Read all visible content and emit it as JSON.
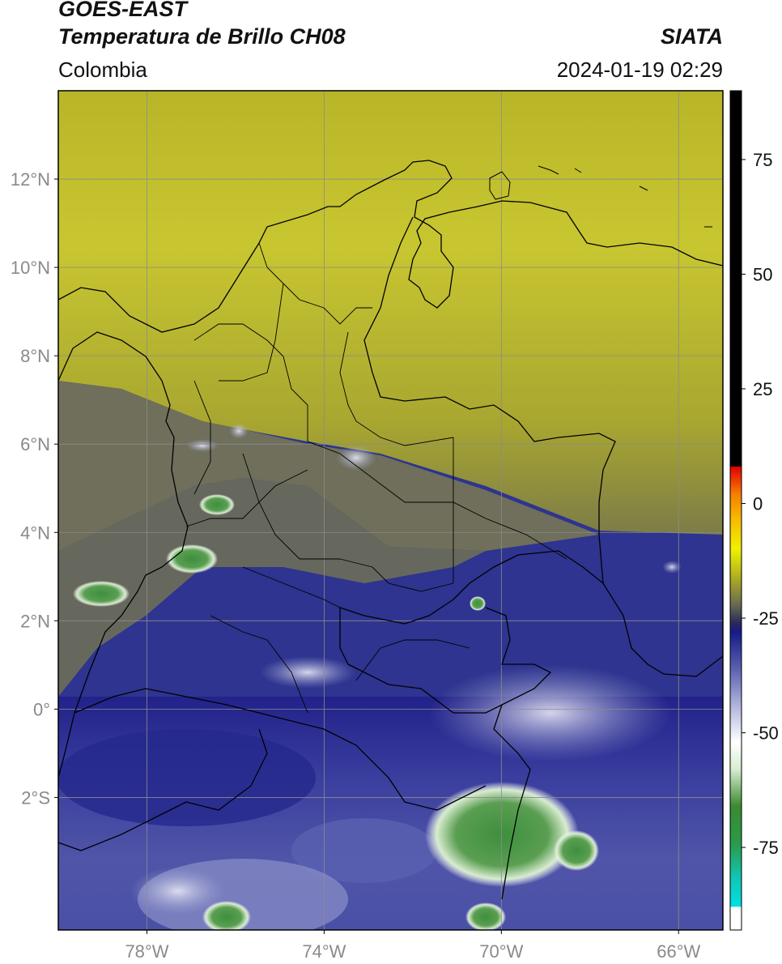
{
  "header": {
    "title_line1": "GOES-EAST",
    "title_line2": "Temperatura de Brillo CH08",
    "region": "Colombia",
    "agency": "SIATA",
    "timestamp": "2024-01-19 02:29"
  },
  "map": {
    "lon_range": [
      -80,
      -65
    ],
    "lat_range": [
      -5,
      14
    ],
    "lat_ticks": [
      {
        "value": 12,
        "label": "12°N"
      },
      {
        "value": 10,
        "label": "10°N"
      },
      {
        "value": 8,
        "label": "8°N"
      },
      {
        "value": 6,
        "label": "6°N"
      },
      {
        "value": 4,
        "label": "4°N"
      },
      {
        "value": 2,
        "label": "2°N"
      },
      {
        "value": 0,
        "label": "0°"
      },
      {
        "value": -2,
        "label": "2°S"
      }
    ],
    "lon_ticks": [
      {
        "value": -78,
        "label": "78°W"
      },
      {
        "value": -74,
        "label": "74°W"
      },
      {
        "value": -70,
        "label": "70°W"
      },
      {
        "value": -66,
        "label": "66°W"
      }
    ],
    "gridlines": true
  },
  "colorbar": {
    "range": [
      -93,
      90
    ],
    "ticks": [
      {
        "value": 75,
        "label": "75"
      },
      {
        "value": 50,
        "label": "50"
      },
      {
        "value": 25,
        "label": "25"
      },
      {
        "value": 0,
        "label": "0"
      },
      {
        "value": -25,
        "label": "-25"
      },
      {
        "value": -50,
        "label": "-50"
      },
      {
        "value": -75,
        "label": "-75"
      }
    ],
    "stops": [
      {
        "value": -93,
        "color": "#ffffff"
      },
      {
        "value": -88,
        "color": "#ffffff"
      },
      {
        "value": -87.9,
        "color": "#00e0e0"
      },
      {
        "value": -82,
        "color": "#10c8b8"
      },
      {
        "value": -74,
        "color": "#2a9a4a"
      },
      {
        "value": -66,
        "color": "#3a8a30"
      },
      {
        "value": -58,
        "color": "#d8ecd0"
      },
      {
        "value": -52,
        "color": "#ffffff"
      },
      {
        "value": -44,
        "color": "#b0b4dc"
      },
      {
        "value": -36,
        "color": "#5a60b0"
      },
      {
        "value": -28,
        "color": "#151a88"
      },
      {
        "value": -26,
        "color": "#2a2a5a"
      },
      {
        "value": -22,
        "color": "#6a6a50"
      },
      {
        "value": -16,
        "color": "#b0b020"
      },
      {
        "value": -10,
        "color": "#f0f000"
      },
      {
        "value": -4,
        "color": "#f8c000"
      },
      {
        "value": 2,
        "color": "#f88000"
      },
      {
        "value": 8,
        "color": "#e00000"
      },
      {
        "value": 8.1,
        "color": "#000000"
      },
      {
        "value": 90,
        "color": "#000000"
      }
    ]
  }
}
